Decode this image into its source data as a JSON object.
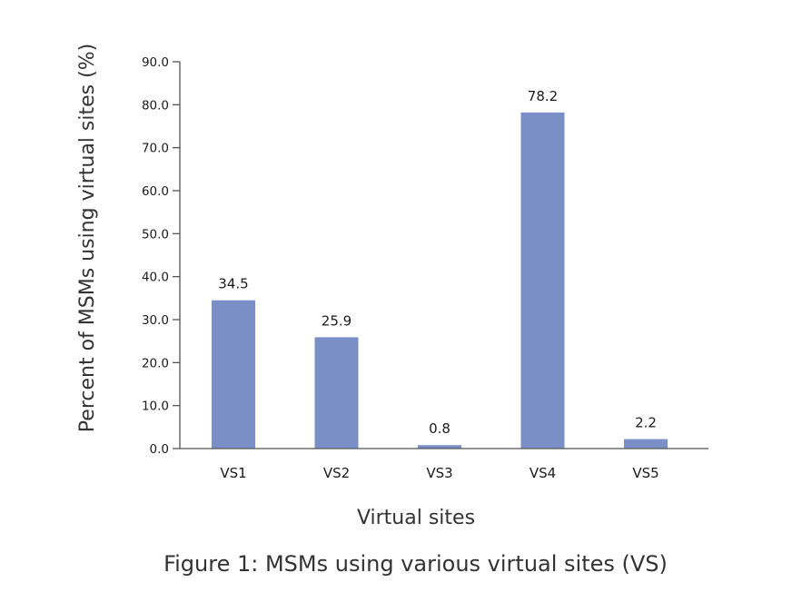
{
  "chart_data": {
    "type": "bar",
    "categories": [
      "VS1",
      "VS2",
      "VS3",
      "VS4",
      "VS5"
    ],
    "values": [
      34.5,
      25.9,
      0.8,
      78.2,
      2.2
    ],
    "data_labels": [
      "34.5",
      "25.9",
      "0.8",
      "78.2",
      "2.2"
    ],
    "xlabel": "Virtual sites",
    "ylabel": "Percent of MSMs using virtual sites (%)",
    "ylim": [
      0,
      90
    ],
    "yticks": [
      "0.0",
      "10.0",
      "20.0",
      "30.0",
      "40.0",
      "50.0",
      "60.0",
      "70.0",
      "80.0",
      "90.0"
    ],
    "bar_color": "#7a8fc6",
    "axis_color": "#555555",
    "grid": false,
    "legend": "none"
  },
  "caption": "Figure 1: MSMs using various virtual sites (VS)"
}
